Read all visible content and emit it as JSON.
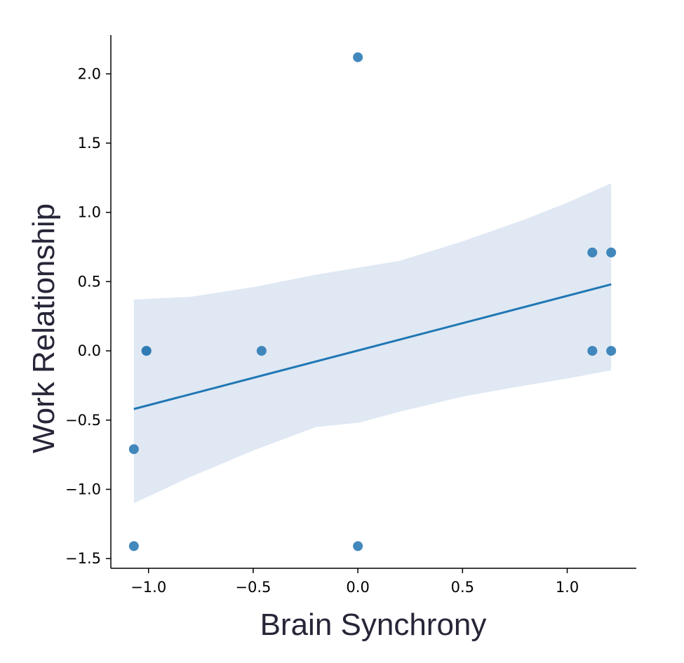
{
  "chart_data": {
    "type": "scatter",
    "xlabel": "Brain Synchrony",
    "ylabel": "Work Relationship",
    "xlim": [
      -1.18,
      1.33
    ],
    "ylim": [
      -1.57,
      2.28
    ],
    "x_ticks": [
      -1.0,
      -0.5,
      0.0,
      0.5,
      1.0
    ],
    "x_tick_labels": [
      "−1.0",
      "−0.5",
      "0.0",
      "0.5",
      "1.0"
    ],
    "y_ticks": [
      -1.5,
      -1.0,
      -0.5,
      0.0,
      0.5,
      1.0,
      1.5,
      2.0
    ],
    "y_tick_labels": [
      "−1.5",
      "−1.0",
      "−0.5",
      "0.0",
      "0.5",
      "1.0",
      "1.5",
      "2.0"
    ],
    "grid": false,
    "points": [
      {
        "x": -1.07,
        "y": -1.41
      },
      {
        "x": -1.07,
        "y": -0.71
      },
      {
        "x": -1.01,
        "y": 0.0
      },
      {
        "x": -1.01,
        "y": 0.0
      },
      {
        "x": -0.46,
        "y": 0.0
      },
      {
        "x": 0.0,
        "y": 2.12
      },
      {
        "x": 0.0,
        "y": -1.41
      },
      {
        "x": 1.12,
        "y": 0.71
      },
      {
        "x": 1.21,
        "y": 0.71
      },
      {
        "x": 1.12,
        "y": 0.0
      },
      {
        "x": 1.21,
        "y": 0.0
      }
    ],
    "regression_line": {
      "x": [
        -1.07,
        1.21
      ],
      "y": [
        -0.42,
        0.48
      ]
    },
    "confidence_band": {
      "x": [
        -1.07,
        -0.8,
        -0.5,
        -0.2,
        0.0,
        0.2,
        0.5,
        0.8,
        1.0,
        1.21
      ],
      "upper": [
        0.37,
        0.39,
        0.46,
        0.55,
        0.6,
        0.65,
        0.79,
        0.95,
        1.07,
        1.21
      ],
      "lower": [
        -1.1,
        -0.91,
        -0.72,
        -0.55,
        -0.52,
        -0.44,
        -0.33,
        -0.25,
        -0.2,
        -0.14
      ]
    },
    "colors": {
      "points": "#2e7bb5",
      "line": "#1f77b4",
      "band": "#dfe8f3",
      "axis": "#000000",
      "axis_title": "#262638"
    }
  }
}
